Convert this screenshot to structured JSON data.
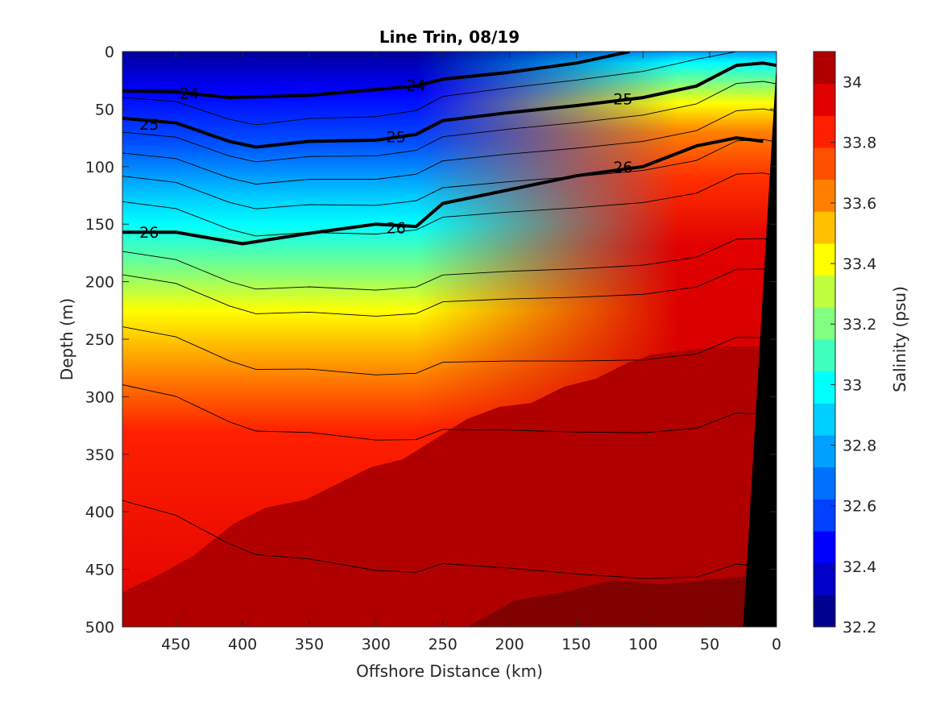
{
  "chart_data": {
    "type": "heatmap",
    "title": "Line Trin, 08/19",
    "xlabel": "Offshore Distance (km)",
    "ylabel": "Depth (m)",
    "xlim": [
      490,
      0
    ],
    "ylim": [
      0,
      500
    ],
    "x_ticks": [
      "450",
      "400",
      "350",
      "300",
      "250",
      "200",
      "150",
      "100",
      "50",
      "0"
    ],
    "y_ticks": [
      "0",
      "50",
      "100",
      "150",
      "200",
      "250",
      "300",
      "350",
      "400",
      "450",
      "500"
    ],
    "colorbar": {
      "label": "Salinity (psu)",
      "range": [
        32.2,
        34.1
      ],
      "tick_labels": [
        "34",
        "33.8",
        "33.6",
        "33.4",
        "33.2",
        "33",
        "32.8",
        "32.6",
        "32.4",
        "32.2"
      ],
      "colors": [
        "#00008f",
        "#0000c8",
        "#0000ff",
        "#0040ff",
        "#0070ff",
        "#00a0ff",
        "#00d0ff",
        "#00ffff",
        "#3fffbf",
        "#80ff80",
        "#bfff3f",
        "#ffff00",
        "#ffc000",
        "#ff8000",
        "#ff5000",
        "#ff2000",
        "#e00000",
        "#b00000"
      ]
    },
    "density_contour_labels": [
      "24",
      "24",
      "25",
      "25",
      "25",
      "26",
      "26",
      "26"
    ],
    "density_contours": [
      {
        "sigma": 24,
        "x": [
          490,
          450,
          410,
          350,
          300,
          270,
          250,
          200,
          150,
          110
        ],
        "y": [
          34,
          35,
          40,
          38,
          33,
          30,
          24,
          18,
          10,
          0
        ]
      },
      {
        "sigma": 25,
        "x": [
          490,
          450,
          410,
          390,
          350,
          300,
          270,
          250,
          200,
          150,
          100,
          60,
          30,
          10,
          0
        ],
        "y": [
          58,
          62,
          78,
          83,
          78,
          77,
          72,
          60,
          53,
          47,
          40,
          30,
          12,
          10,
          12
        ]
      },
      {
        "sigma": 26,
        "x": [
          490,
          450,
          400,
          350,
          300,
          270,
          250,
          200,
          150,
          100,
          60,
          30,
          10
        ],
        "y": [
          157,
          157,
          167,
          158,
          150,
          152,
          132,
          120,
          108,
          100,
          82,
          75,
          78
        ]
      }
    ],
    "land_mask": {
      "x_top": 0,
      "x_bottom": 25,
      "depth_start": 10
    }
  }
}
